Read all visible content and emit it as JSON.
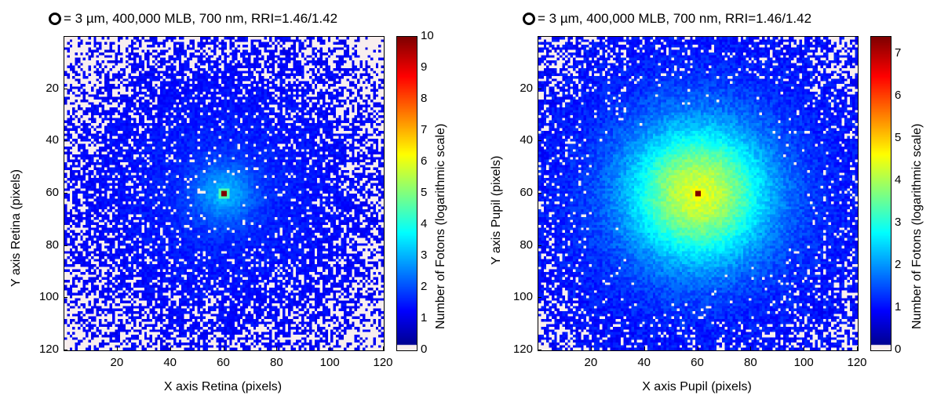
{
  "chart_data": [
    {
      "type": "heatmap",
      "title": "= 3 µm, 400,000 MLB, 700 nm, RRI=1.46/1.42",
      "xlabel": "X axis Retina (pixels)",
      "ylabel": "Y axis Retina (pixels)",
      "xlim": [
        0,
        120
      ],
      "ylim": [
        120,
        0
      ],
      "x_ticks": [
        "20",
        "40",
        "60",
        "80",
        "100",
        "120"
      ],
      "y_ticks": [
        "20",
        "40",
        "60",
        "80",
        "100",
        "120"
      ],
      "colorbar": {
        "label": "Number of Fotons (logarithmic scale)",
        "range": [
          0,
          10
        ],
        "ticks": [
          "0",
          "1",
          "2",
          "3",
          "4",
          "5",
          "6",
          "7",
          "8",
          "9",
          "10"
        ],
        "colormap": "jet"
      },
      "peak": {
        "x": 60,
        "y": 60,
        "value": 10
      },
      "background_value": 1.2,
      "falloff": "sharp central peak with broad low-level halo"
    },
    {
      "type": "heatmap",
      "title": "= 3 µm, 400,000 MLB, 700 nm, RRI=1.46/1.42",
      "xlabel": "X axis Pupil (pixels)",
      "ylabel": "Y axis Pupil (pixels)",
      "xlim": [
        0,
        120
      ],
      "ylim": [
        120,
        0
      ],
      "x_ticks": [
        "20",
        "40",
        "60",
        "80",
        "100",
        "120"
      ],
      "y_ticks": [
        "20",
        "40",
        "60",
        "80",
        "100",
        "120"
      ],
      "colorbar": {
        "label": "Number of Fotons (logarithmic scale)",
        "range": [
          0,
          7.4
        ],
        "ticks": [
          "0",
          "1",
          "2",
          "3",
          "4",
          "5",
          "6",
          "7"
        ],
        "colormap": "jet"
      },
      "peak": {
        "x": 60,
        "y": 60,
        "value": 7.4
      },
      "background_value": 1.0,
      "falloff": "broad gaussian-like spot"
    }
  ],
  "colors": {
    "empty_bin": "#f8eeee",
    "peak": "#7f0000"
  }
}
